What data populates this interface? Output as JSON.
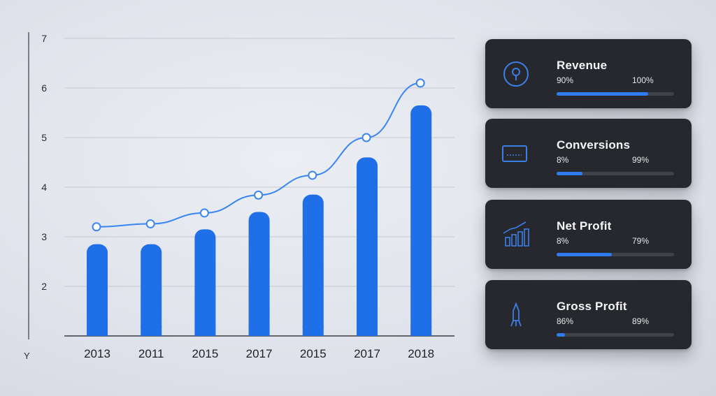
{
  "chart_data": {
    "type": "bar",
    "categories": [
      "2013",
      "2011",
      "2015",
      "2017",
      "2015",
      "2017",
      "2018"
    ],
    "values": [
      2.85,
      2.85,
      3.15,
      3.5,
      3.85,
      4.6,
      5.65
    ],
    "line_values": [
      3.2,
      3.26,
      3.48,
      3.84,
      4.24,
      5.0,
      6.1
    ],
    "y_ticks": [
      2,
      3,
      4,
      5,
      6,
      7
    ],
    "ylim": [
      1,
      7
    ],
    "ylabel": "Y",
    "xlabel": "",
    "title": "",
    "grid": true,
    "colors": {
      "bar": "#1f6fe8",
      "line": "#3a86f0"
    }
  },
  "panels": [
    {
      "title": "Revenue",
      "left_value": "90%",
      "right_value": "100%",
      "progress": 0.78,
      "icon": "coin-icon"
    },
    {
      "title": "Conversions",
      "left_value": "8%",
      "right_value": "99%",
      "progress": 0.22,
      "icon": "card-icon"
    },
    {
      "title": "Net Profit",
      "left_value": "8%",
      "right_value": "79%",
      "progress": 0.47,
      "icon": "bar-chart-icon"
    },
    {
      "title": "Gross Profit",
      "left_value": "86%",
      "right_value": "89%",
      "progress": 0.07,
      "icon": "rocket-icon"
    }
  ]
}
